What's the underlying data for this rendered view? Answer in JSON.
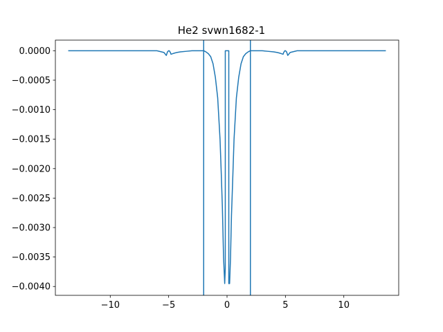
{
  "chart_data": {
    "type": "line",
    "title": "He2 svwn1682-1",
    "xlabel": "",
    "ylabel": "",
    "xlim": [
      -14.7,
      14.7
    ],
    "ylim": [
      -0.00415,
      0.00018
    ],
    "grid": false,
    "line_color": "#1f77b4",
    "x_ticks": [
      -10,
      -5,
      0,
      5,
      10
    ],
    "x_tick_labels": [
      "−10",
      "−5",
      "0",
      "5",
      "10"
    ],
    "y_ticks": [
      0.0,
      -0.0005,
      -0.001,
      -0.0015,
      -0.002,
      -0.0025,
      -0.003,
      -0.0035,
      -0.004
    ],
    "y_tick_labels": [
      "0.0000",
      "−0.0005",
      "−0.0010",
      "−0.0015",
      "−0.0020",
      "−0.0025",
      "−0.0030",
      "−0.0035",
      "−0.0040"
    ],
    "vertical_lines": [
      -2.0,
      2.0
    ],
    "series": [
      {
        "x": [
          -13.6,
          -6.0,
          -5.4,
          -5.2,
          -5.1,
          -5.0,
          -4.95,
          -4.85,
          -4.8,
          -4.65,
          -4.5,
          -4.3,
          -4.0,
          -3.5,
          -3.0,
          -2.6,
          -2.3,
          -2.0,
          -1.8,
          -1.6,
          -1.4,
          -1.2,
          -1.0,
          -0.8,
          -0.6,
          -0.5,
          -0.4,
          -0.3,
          -0.2,
          -0.15,
          -0.15,
          0.15,
          0.15,
          0.22,
          0.3,
          0.38,
          0.5,
          0.6,
          0.8,
          1.0,
          1.2,
          1.4,
          1.6,
          1.8,
          2.0,
          2.3,
          2.6,
          3.0,
          3.5,
          4.0,
          4.3,
          4.5,
          4.65,
          4.8,
          4.85,
          4.95,
          5.0,
          5.1,
          5.2,
          5.4,
          6.0,
          13.6
        ],
        "y": [
          0.0,
          0.0,
          -3e-05,
          -8e-05,
          -2e-05,
          0.0,
          0.0,
          -3e-05,
          -6e-05,
          -5e-05,
          -4e-05,
          -3e-05,
          -2e-05,
          -1e-05,
          0.0,
          0.0,
          0.0,
          0.0,
          -2e-05,
          -5e-05,
          -0.0001,
          -0.00022,
          -0.00045,
          -0.0008,
          -0.0015,
          -0.00205,
          -0.00265,
          -0.0035,
          -0.00395,
          -0.0037,
          0.0,
          0.0,
          -0.00395,
          -0.00395,
          -0.0035,
          -0.0028,
          -0.0021,
          -0.0015,
          -0.0008,
          -0.00045,
          -0.00022,
          -0.0001,
          -5e-05,
          -2e-05,
          0.0,
          0.0,
          0.0,
          0.0,
          -1e-05,
          -2e-05,
          -3e-05,
          -4e-05,
          -5e-05,
          -6e-05,
          -3e-05,
          0.0,
          0.0,
          -2e-05,
          -8e-05,
          -3e-05,
          0.0,
          0.0
        ]
      }
    ]
  }
}
